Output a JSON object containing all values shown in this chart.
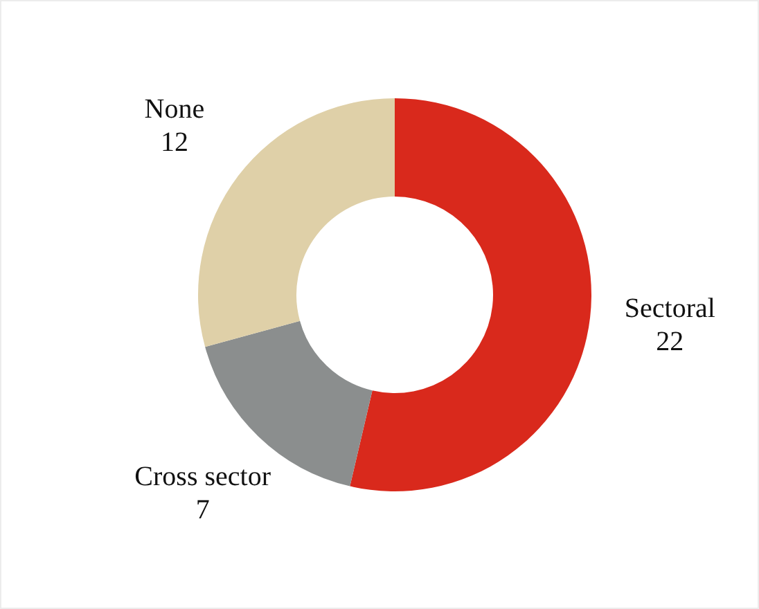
{
  "chart_data": {
    "type": "donut",
    "categories": [
      "Sectoral",
      "Cross sector",
      "None"
    ],
    "values": [
      22,
      7,
      12
    ],
    "colors": [
      "#d9291c",
      "#8b8e8e",
      "#dfd0a8"
    ],
    "data_labels": true,
    "legend": false
  }
}
